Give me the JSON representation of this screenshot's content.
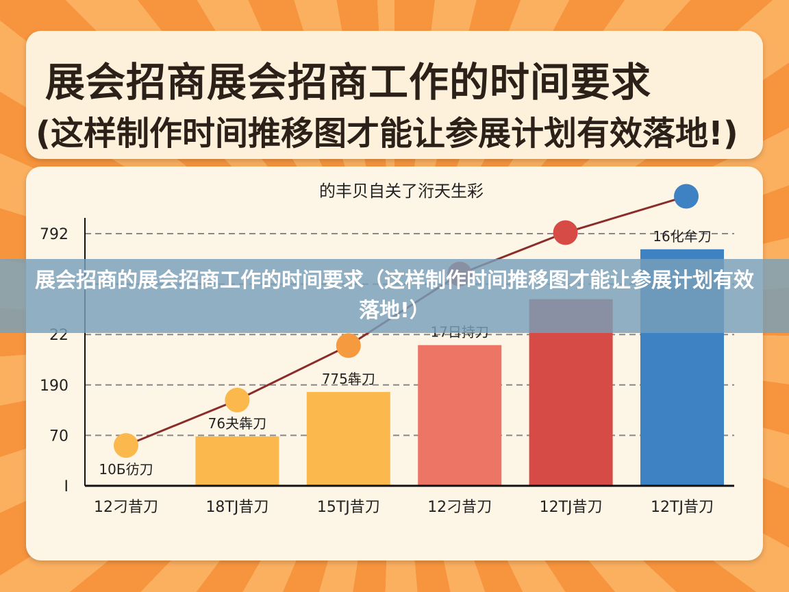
{
  "header": {
    "title_line1": "展会招商展会招商工作的时间要求",
    "title_line2": "(这样制作时间推移图才能让参展计划有效落地!)"
  },
  "banner": {
    "text": "展会招商的展会招商工作的时间要求（这样制作时间推移图才能让参展计划有效落地!）"
  },
  "chart_data": {
    "type": "bar+line",
    "title": "的丰贝自关了洐天生彩",
    "y_tick_labels": [
      "I",
      "70",
      "190",
      "22",
      "",
      "792"
    ],
    "ylim": [
      0,
      6
    ],
    "grid": true,
    "categories": [
      "12刁昔刀",
      "18TJ昔刀",
      "15TJ昔刀",
      "12刁昔刀",
      "12TJ昔刀",
      "12TJ昔刀"
    ],
    "bars": {
      "values": [
        0,
        0.98,
        1.86,
        2.79,
        3.7,
        4.69
      ],
      "colors": [
        "#fdf5e6",
        "#fbb84d",
        "#fbb84d",
        "#ec7565",
        "#d64b45",
        "#3f82c3"
      ],
      "labels": [
        "10Б彷刀",
        "76夬犇刀",
        "775犇刀",
        "17日持刀",
        "",
        "16化牟刀"
      ]
    },
    "line": {
      "values": [
        0.8,
        1.7,
        2.78,
        4.2,
        5.02,
        5.74
      ],
      "color": "#8a2d2a",
      "point_colors": [
        "#fbb84d",
        "#fbb84d",
        "#f59a3e",
        "#d64b45",
        "#d64b45",
        "#3f82c3"
      ]
    }
  }
}
